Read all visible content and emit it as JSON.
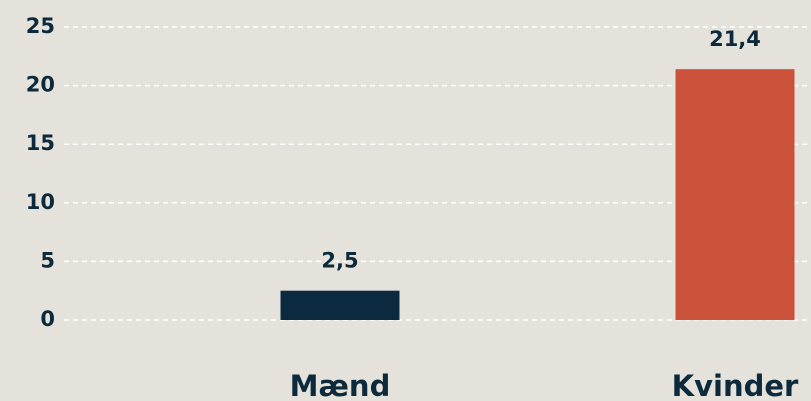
{
  "chart_data": {
    "type": "bar",
    "categories": [
      "Mænd",
      "Kvinder"
    ],
    "values": [
      2.5,
      21.4
    ],
    "value_labels": [
      "2,5",
      "21,4"
    ],
    "colors": [
      "#0b2a40",
      "#cc513b"
    ],
    "ylim": [
      0,
      25
    ],
    "yticks": [
      0,
      5,
      10,
      15,
      20,
      25
    ],
    "grid": true
  }
}
